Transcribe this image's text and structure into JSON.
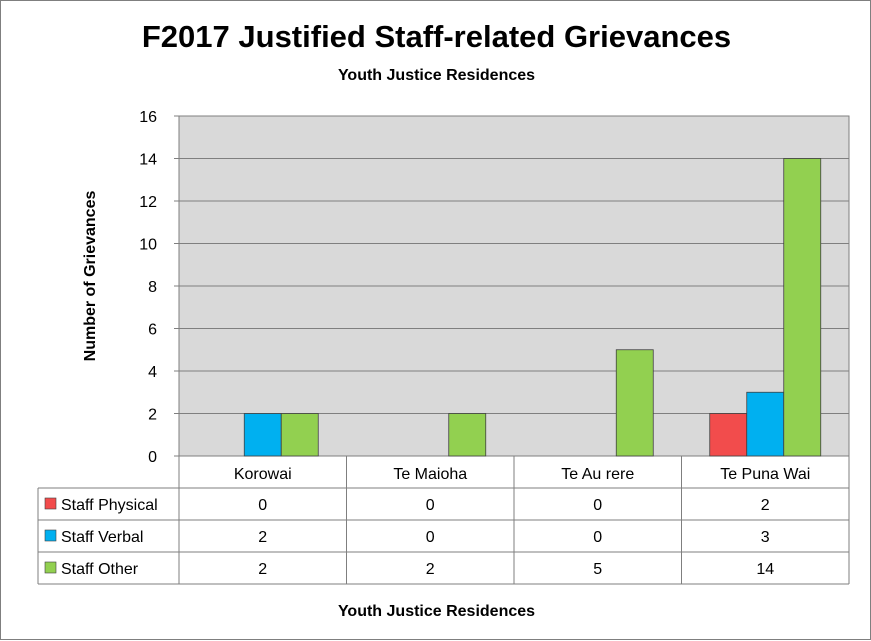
{
  "chart_data": {
    "type": "bar",
    "title": "F2017 Justified Staff-related Grievances",
    "subtitle": "Youth Justice Residences",
    "xlabel": "Youth Justice Residences",
    "ylabel": "Number of Grievances",
    "categories": [
      "Korowai",
      "Te Maioha",
      "Te Au rere",
      "Te Puna Wai"
    ],
    "series": [
      {
        "name": "Staff Physical",
        "color": "#f24c4c",
        "values": [
          0,
          0,
          0,
          2
        ]
      },
      {
        "name": "Staff Verbal",
        "color": "#00b0f0",
        "values": [
          2,
          0,
          0,
          3
        ]
      },
      {
        "name": "Staff Other",
        "color": "#92d050",
        "values": [
          2,
          2,
          5,
          14
        ]
      }
    ],
    "ylim": [
      0,
      16
    ],
    "yticks": [
      0,
      2,
      4,
      6,
      8,
      10,
      12,
      14,
      16
    ],
    "grid": true,
    "plot_background": "#d9d9d9",
    "legend": "data-table"
  }
}
